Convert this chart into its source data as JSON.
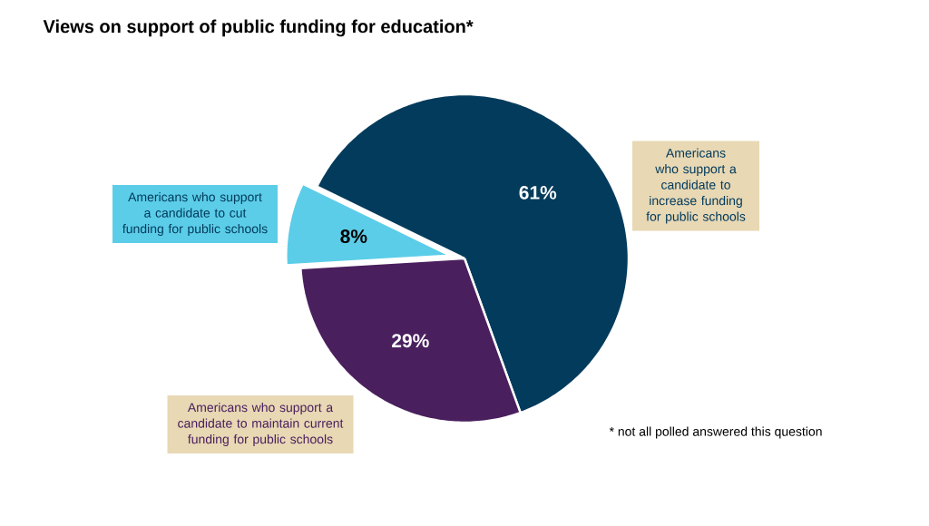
{
  "chart_data": {
    "type": "pie",
    "title": "Views on support of public funding for education*",
    "categories": [
      "Americans who support a candidate to increase funding for public schools",
      "Americans who support a candidate to maintain current funding for public schools",
      "Americans who support a candidate to cut funding for public schools"
    ],
    "values": [
      61,
      29,
      8
    ],
    "colors": [
      "#033b5c",
      "#4a1f5e",
      "#5bcde8"
    ],
    "value_labels": [
      "61%",
      "29%",
      "8%"
    ],
    "annotations": [
      "* not all polled answered this question"
    ]
  }
}
